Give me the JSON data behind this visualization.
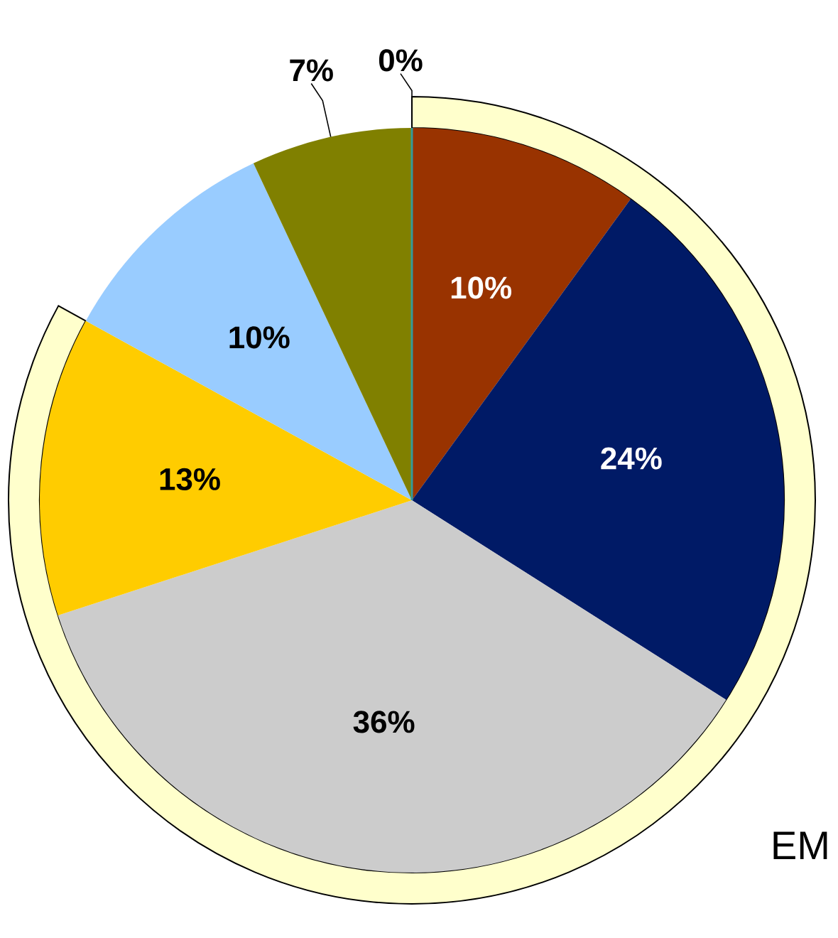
{
  "chart_data": {
    "type": "pie",
    "categories": [
      null,
      null,
      null,
      null,
      null,
      null,
      null
    ],
    "values": [
      10,
      24,
      36,
      13,
      10,
      7,
      0
    ],
    "colors": [
      "#993300",
      "#001a66",
      "#cccccc",
      "#ffcc00",
      "#99ccff",
      "#808000",
      "#339999"
    ],
    "value_labels": [
      "10%",
      "24%",
      "36%",
      "13%",
      "10%",
      "7%",
      "0%"
    ],
    "annotations": [
      "EM"
    ]
  }
}
